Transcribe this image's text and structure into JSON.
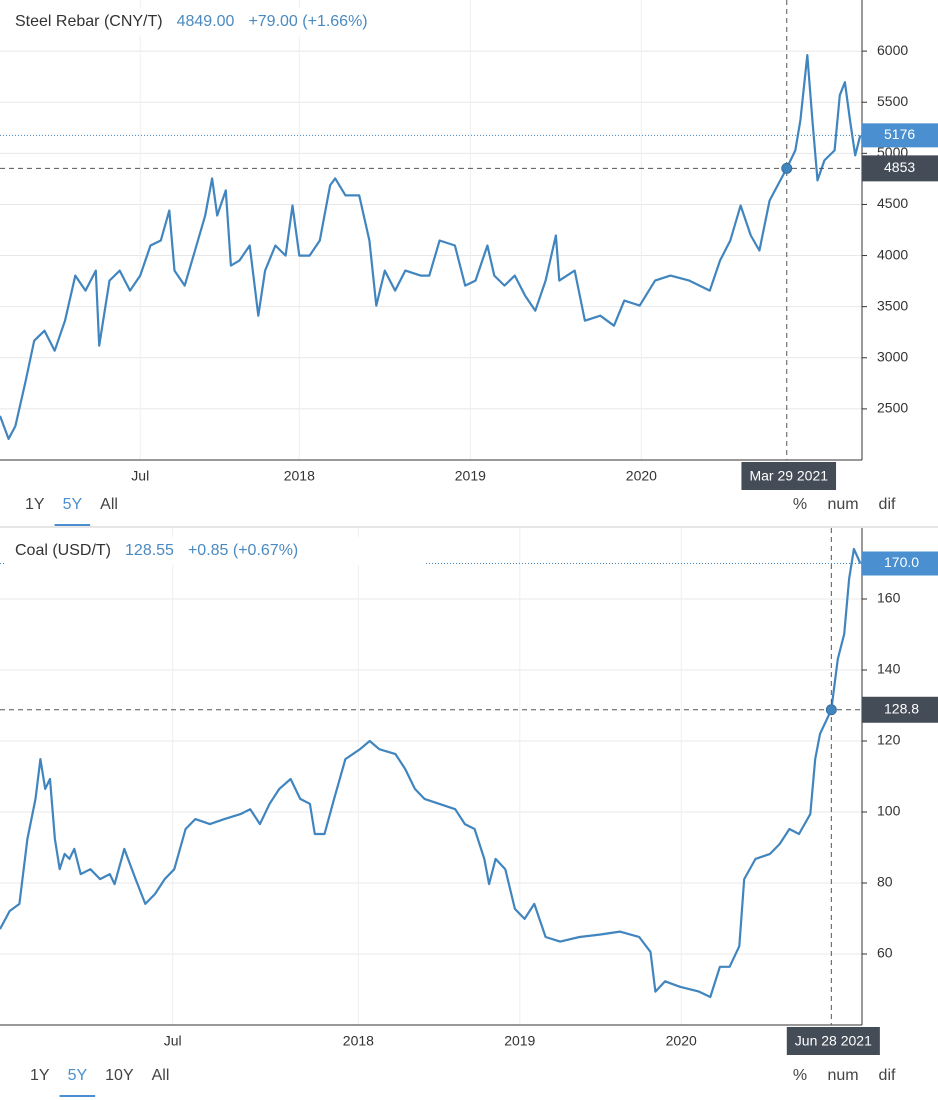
{
  "chart_data": [
    {
      "type": "line",
      "title": "Steel Rebar (CNY/T)",
      "price": "4849.00",
      "change": "+79.00 (+1.66%)",
      "x": [
        2016.25,
        2016.3,
        2016.34,
        2016.4,
        2016.45,
        2016.51,
        2016.57,
        2016.63,
        2016.69,
        2016.75,
        2016.81,
        2016.83,
        2016.89,
        2016.95,
        2017.01,
        2017.07,
        2017.13,
        2017.19,
        2017.24,
        2017.27,
        2017.33,
        2017.39,
        2017.45,
        2017.49,
        2017.52,
        2017.57,
        2017.6,
        2017.65,
        2017.71,
        2017.76,
        2017.8,
        2017.86,
        2017.92,
        2017.96,
        2018.0,
        2018.06,
        2018.12,
        2018.18,
        2018.21,
        2018.27,
        2018.35,
        2018.41,
        2018.45,
        2018.5,
        2018.56,
        2018.62,
        2018.71,
        2018.76,
        2018.82,
        2018.91,
        2018.97,
        2019.03,
        2019.1,
        2019.14,
        2019.2,
        2019.26,
        2019.32,
        2019.38,
        2019.44,
        2019.5,
        2019.52,
        2019.61,
        2019.67,
        2019.76,
        2019.84,
        2019.9,
        2019.99,
        2020.08,
        2020.17,
        2020.28,
        2020.4,
        2020.46,
        2020.52,
        2020.58,
        2020.64,
        2020.69,
        2020.75,
        2020.85,
        2020.9,
        2020.93,
        2020.97,
        2021.0,
        2021.03,
        2021.07,
        2021.13,
        2021.16,
        2021.19,
        2021.22,
        2021.25,
        2021.28
      ],
      "series": [
        {
          "color": "#4185bf",
          "values": [
            2431,
            2206,
            2333,
            2775,
            3167,
            3265,
            3069,
            3363,
            3804,
            3657,
            3853,
            3118,
            3755,
            3853,
            3657,
            3804,
            4098,
            4147,
            4441,
            3853,
            3706,
            4049,
            4392,
            4755,
            4392,
            4637,
            3902,
            3951,
            4098,
            3412,
            3853,
            4098,
            4000,
            4490,
            4000,
            4000,
            4147,
            4686,
            4755,
            4588,
            4588,
            4147,
            3510,
            3853,
            3657,
            3853,
            3804,
            3804,
            4147,
            4098,
            3706,
            3755,
            4098,
            3804,
            3706,
            3804,
            3608,
            3461,
            3755,
            4196,
            3755,
            3853,
            3363,
            3412,
            3314,
            3559,
            3510,
            3755,
            3804,
            3755,
            3657,
            3951,
            4147,
            4490,
            4196,
            4049,
            4539,
            4853,
            5029,
            5324,
            5961,
            5324,
            4735,
            4931,
            5029,
            5569,
            5696,
            5324,
            4980,
            5176
          ]
        }
      ],
      "xlim": [
        2016.25,
        2021.29
      ],
      "xticks": [
        {
          "value": 2017.07,
          "label": "Jul"
        },
        2018,
        2019,
        2020
      ],
      "ylim": [
        2000,
        6500
      ],
      "yticks": [
        2500,
        3000,
        3500,
        4000,
        4500,
        5000,
        5500,
        6000
      ],
      "grid": true,
      "last_value": 5176,
      "crosshair": {
        "x": 2020.85,
        "y": 4853,
        "x_label": "Mar 29 2021"
      },
      "ranges": [
        "1Y",
        "5Y",
        "All"
      ],
      "active_range": 1,
      "modes": [
        "%",
        "num",
        "dif"
      ]
    },
    {
      "type": "line",
      "title": "Coal (USD/T)",
      "price": "128.55",
      "change": "+0.85 (+0.67%)",
      "x": [
        2015.78,
        2015.84,
        2015.9,
        2015.95,
        2016.0,
        2016.03,
        2016.06,
        2016.09,
        2016.12,
        2016.15,
        2016.18,
        2016.21,
        2016.24,
        2016.28,
        2016.34,
        2016.4,
        2016.46,
        2016.49,
        2016.55,
        2016.62,
        2016.68,
        2016.74,
        2016.8,
        2016.86,
        2016.93,
        2016.99,
        2017.08,
        2017.17,
        2017.27,
        2017.33,
        2017.39,
        2017.45,
        2017.51,
        2017.58,
        2017.64,
        2017.7,
        2017.73,
        2017.79,
        2017.85,
        2017.92,
        2018.01,
        2018.07,
        2018.13,
        2018.23,
        2018.29,
        2018.35,
        2018.41,
        2018.5,
        2018.6,
        2018.66,
        2018.72,
        2018.78,
        2018.81,
        2018.85,
        2018.91,
        2018.97,
        2019.03,
        2019.09,
        2019.16,
        2019.25,
        2019.37,
        2019.5,
        2019.62,
        2019.74,
        2019.81,
        2019.84,
        2019.9,
        2019.99,
        2020.11,
        2020.18,
        2020.24,
        2020.3,
        2020.36,
        2020.39,
        2020.46,
        2020.55,
        2020.61,
        2020.67,
        2020.73,
        2020.8,
        2020.83,
        2020.86,
        2020.93,
        2020.97,
        2021.01,
        2021.04,
        2021.07,
        2021.11
      ],
      "series": [
        {
          "color": "#4185bf",
          "values": [
            67.0,
            72.1,
            74.1,
            92.4,
            103.7,
            114.9,
            106.5,
            109.3,
            92.4,
            83.9,
            88.2,
            86.8,
            89.6,
            82.5,
            83.9,
            81.1,
            82.5,
            79.7,
            89.6,
            81.1,
            74.1,
            76.9,
            81.1,
            83.9,
            95.2,
            98.0,
            96.6,
            98.0,
            99.4,
            100.8,
            96.6,
            102.3,
            106.5,
            109.3,
            103.7,
            102.3,
            93.8,
            93.8,
            103.7,
            114.9,
            117.7,
            120.0,
            117.7,
            116.3,
            112.1,
            106.5,
            103.7,
            102.3,
            100.8,
            96.6,
            95.2,
            86.8,
            79.7,
            86.8,
            83.9,
            72.7,
            69.9,
            74.1,
            64.8,
            63.5,
            64.8,
            65.5,
            66.3,
            64.8,
            60.6,
            49.4,
            52.3,
            50.8,
            49.4,
            47.9,
            56.4,
            56.4,
            62.2,
            81.1,
            86.8,
            88.2,
            91.0,
            95.2,
            93.8,
            99.4,
            114.9,
            122.0,
            128.8,
            143.1,
            150.1,
            165.6,
            174.1,
            170.0
          ]
        }
      ],
      "xlim": [
        2015.78,
        2021.12
      ],
      "xticks": [
        {
          "value": 2016.85,
          "label": "Jul"
        },
        2018,
        2019,
        2020
      ],
      "ylim": [
        40,
        180
      ],
      "yticks": [
        60,
        80,
        100,
        120,
        140,
        160
      ],
      "grid": true,
      "last_value": {
        "value": 170,
        "label": "170.0"
      },
      "crosshair": {
        "x": 2020.93,
        "y": 128.8,
        "x_label": "Jun 28 2021"
      },
      "ranges": [
        "1Y",
        "5Y",
        "10Y",
        "All"
      ],
      "active_range": 1,
      "modes": [
        "%",
        "num",
        "dif"
      ]
    }
  ]
}
